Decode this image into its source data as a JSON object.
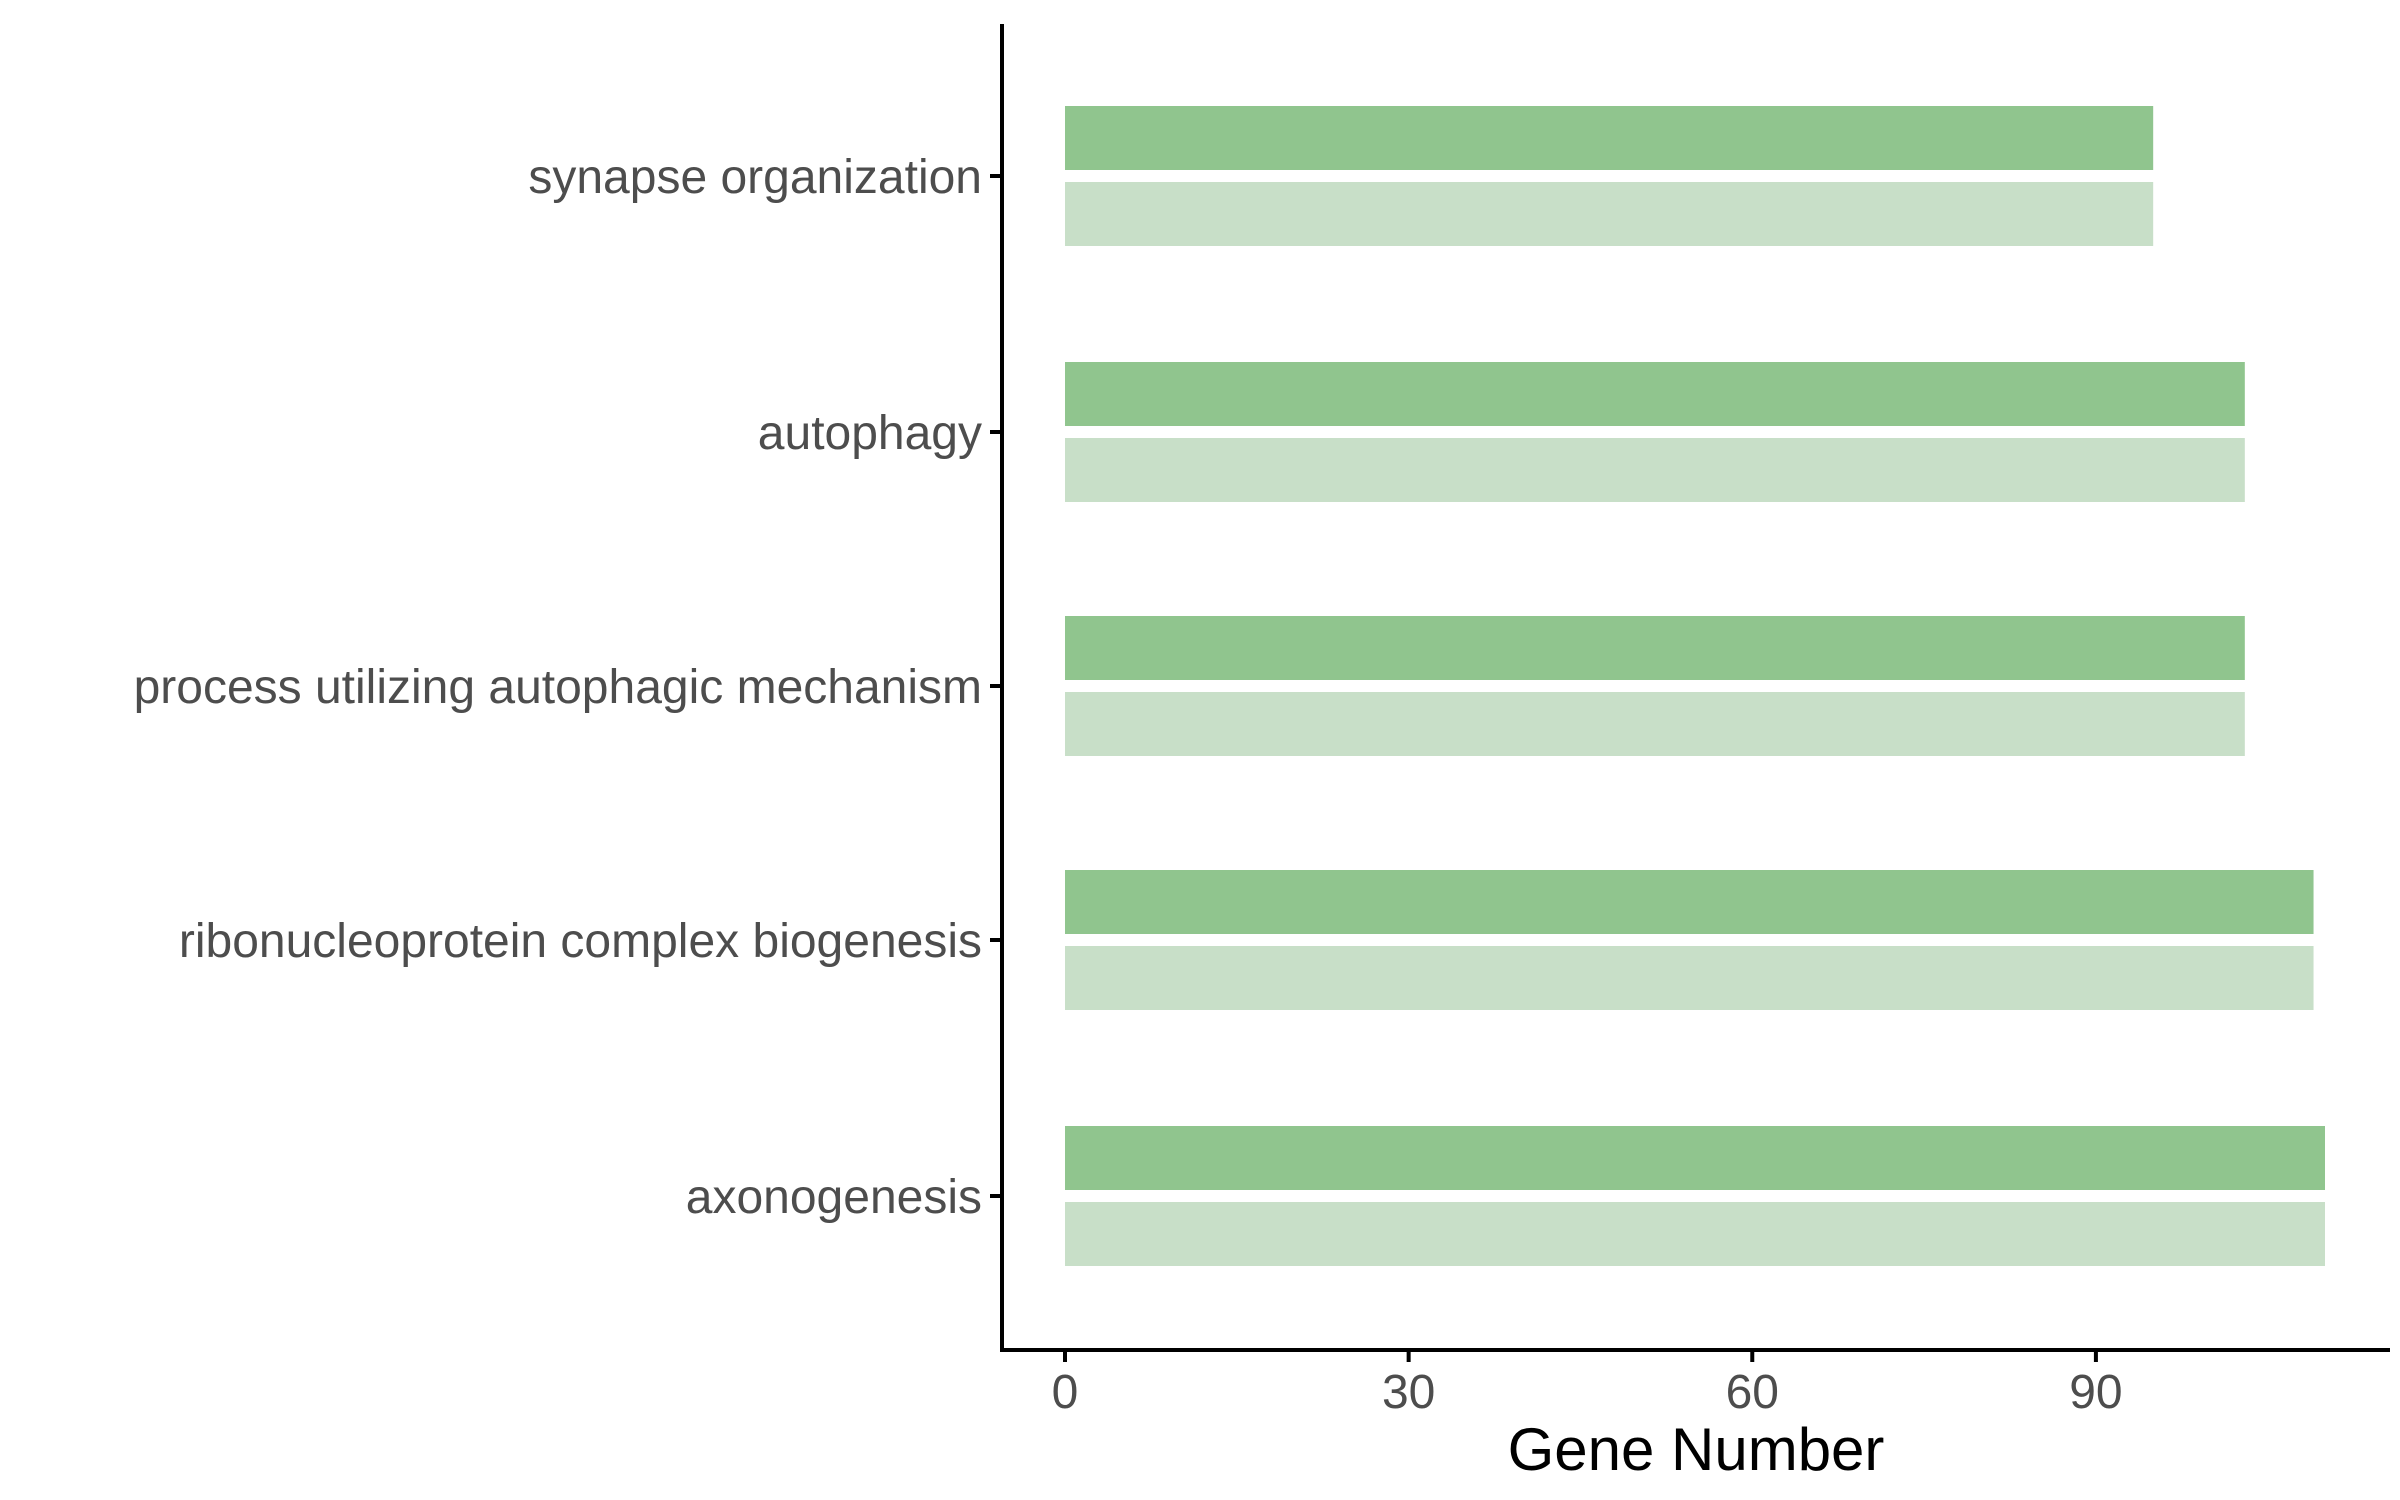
{
  "chart_data": {
    "type": "bar",
    "orientation": "horizontal",
    "categories": [
      "synapse organization",
      "autophagy",
      "process utilizing autophagic mechanism",
      "ribonucleoprotein complex biogenesis",
      "axonogenesis"
    ],
    "series": [
      {
        "values": [
          95,
          103,
          103,
          109,
          110
        ],
        "color": "#90c58e"
      },
      {
        "values": [
          95,
          103,
          103,
          109,
          110
        ],
        "color": "#c8dfc8"
      }
    ],
    "x_ticks": [
      "0",
      "30",
      "60",
      "90"
    ],
    "xlabel": "Gene Number",
    "xlim": [
      -5.5,
      115.5
    ],
    "grid": false,
    "legend": "none"
  }
}
